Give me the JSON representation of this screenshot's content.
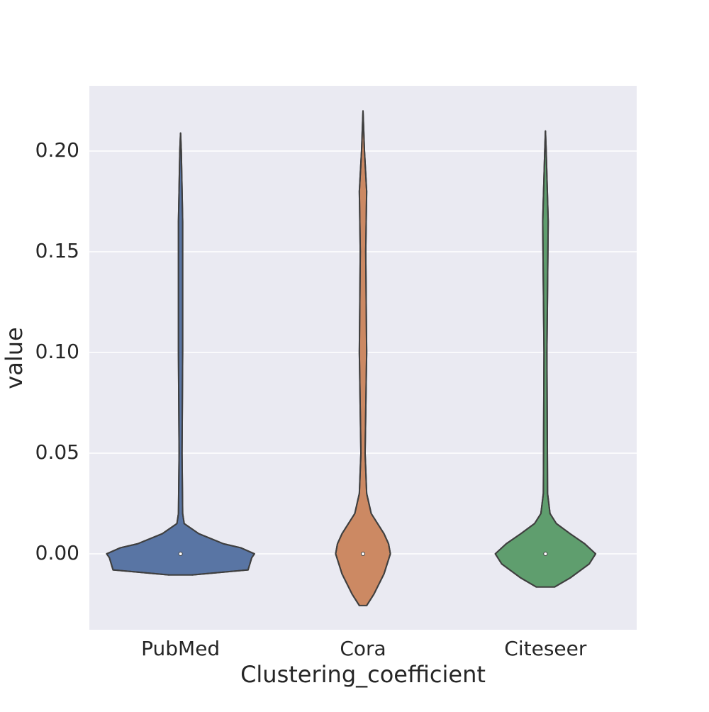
{
  "chart_data": {
    "type": "violin",
    "x_label": "Clustering_coefficient",
    "y_label": "value",
    "categories": [
      "PubMed",
      "Cora",
      "Citeseer"
    ],
    "series": [
      {
        "name": "PubMed",
        "color": "#5975a4",
        "y": [
          -0.0105,
          -0.008,
          -0.002,
          0,
          0.003,
          0.005,
          0.01,
          0.015,
          0.02,
          0.05,
          0.1,
          0.165,
          0.2,
          0.209
        ],
        "density": [
          0.125,
          0.74,
          0.78,
          0.81,
          0.66,
          0.47,
          0.2,
          0.04,
          0.023,
          0.016,
          0.023,
          0.023,
          0.008,
          0
        ],
        "median": 0
      },
      {
        "name": "Cora",
        "color": "#cc8963",
        "y": [
          -0.0257,
          -0.02,
          -0.01,
          0,
          0.005,
          0.01,
          0.02,
          0.03,
          0.05,
          0.1,
          0.15,
          0.18,
          0.2,
          0.22
        ],
        "density": [
          0.04,
          0.12,
          0.23,
          0.3,
          0.28,
          0.23,
          0.09,
          0.04,
          0.023,
          0.04,
          0.03,
          0.04,
          0.016,
          0
        ],
        "median": 0
      },
      {
        "name": "Citeseer",
        "color": "#5f9e6e",
        "y": [
          -0.0165,
          -0.012,
          -0.005,
          0,
          0.005,
          0.01,
          0.015,
          0.02,
          0.03,
          0.1,
          0.165,
          0.2,
          0.21
        ],
        "density": [
          0.1,
          0.27,
          0.48,
          0.55,
          0.43,
          0.27,
          0.12,
          0.05,
          0.023,
          0.016,
          0.03,
          0.008,
          0
        ],
        "median": 0
      }
    ],
    "ylim": [
      -0.0377,
      0.2324
    ],
    "yticks": [
      {
        "value": 0,
        "label": "0.00"
      },
      {
        "value": 0.05,
        "label": "0.05"
      },
      {
        "value": 0.1,
        "label": "0.10"
      },
      {
        "value": 0.15,
        "label": "0.15"
      },
      {
        "value": 0.2,
        "label": "0.20"
      }
    ],
    "grid": true
  }
}
